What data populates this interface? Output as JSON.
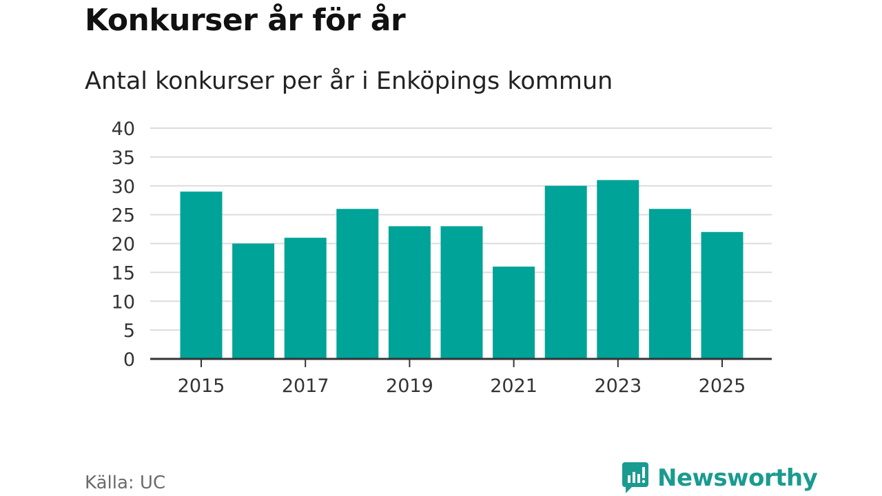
{
  "chart_data": {
    "type": "bar",
    "title": "Konkurser år för år",
    "subtitle": "Antal konkurser per år i Enköpings kommun",
    "categories": [
      "2015",
      "2016",
      "2017",
      "2018",
      "2019",
      "2020",
      "2021",
      "2022",
      "2023",
      "2024",
      "2025"
    ],
    "values": [
      29,
      20,
      21,
      26,
      23,
      23,
      16,
      30,
      31,
      26,
      22
    ],
    "xticks": [
      "2015",
      "2017",
      "2019",
      "2021",
      "2023",
      "2025"
    ],
    "yticks": [
      0,
      5,
      10,
      15,
      20,
      25,
      30,
      35,
      40
    ],
    "ylim": [
      0,
      40
    ],
    "xlabel": "",
    "ylabel": "",
    "grid": true,
    "bar_color": "#00a398"
  },
  "footer": {
    "source": "Källa: UC",
    "brand": "Newsworthy",
    "brand_color": "#1a9b8f"
  },
  "icons": {
    "brand_logo": "newsworthy-logo-icon"
  }
}
